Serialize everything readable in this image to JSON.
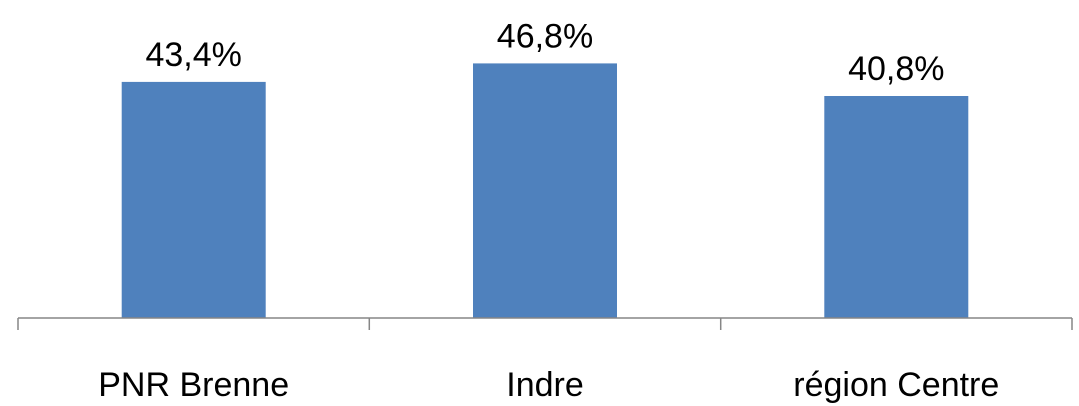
{
  "chart_data": {
    "type": "bar",
    "categories": [
      "PNR Brenne",
      "Indre",
      "région Centre"
    ],
    "values": [
      43.4,
      46.8,
      40.8
    ],
    "data_labels": [
      "43,4%",
      "46,8%",
      "40,8%"
    ],
    "title": "",
    "xlabel": "",
    "ylabel": "",
    "ylim": [
      0,
      50
    ],
    "grid": false,
    "legend": "none",
    "unit": "%",
    "bar_color": "#4F81BD",
    "axis_color": "#868686"
  }
}
